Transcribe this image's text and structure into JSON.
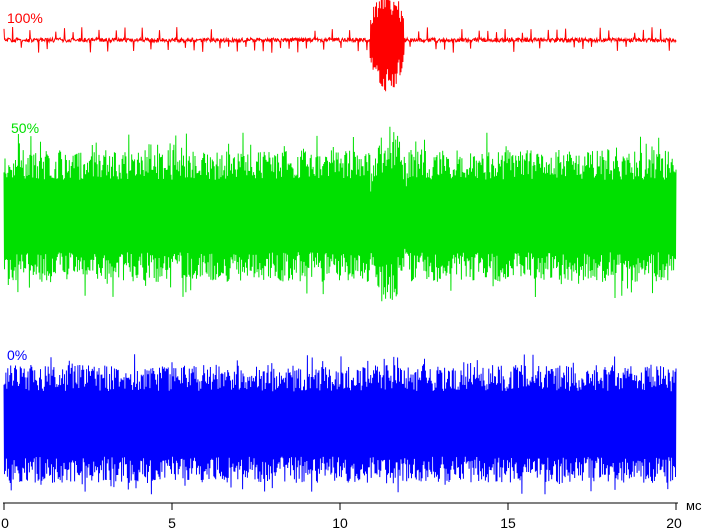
{
  "chart_data": {
    "type": "line",
    "x_unit": "мс",
    "xlim": [
      0,
      20
    ],
    "x_ticks": [
      0,
      5,
      10,
      15,
      20
    ],
    "x_tick_labels": [
      "0",
      "5",
      "10",
      "15",
      "20"
    ],
    "grid": false,
    "series": [
      {
        "name": "100%",
        "color": "#ff0000",
        "baseline_amplitude": 0.04,
        "spike_amplitude": 0.25,
        "burst": {
          "x_start": 10.9,
          "x_end": 11.9,
          "amplitude": 1.0
        }
      },
      {
        "name": "50%",
        "color": "#00e000",
        "baseline_amplitude": 0.75,
        "spike_amplitude": 0.95,
        "burst": {
          "x_start": 10.9,
          "x_end": 12.0,
          "amplitude": 1.05
        }
      },
      {
        "name": "0%",
        "color": "#0000ff",
        "baseline_amplitude": 0.8,
        "spike_amplitude": 0.95,
        "burst": null
      }
    ]
  }
}
